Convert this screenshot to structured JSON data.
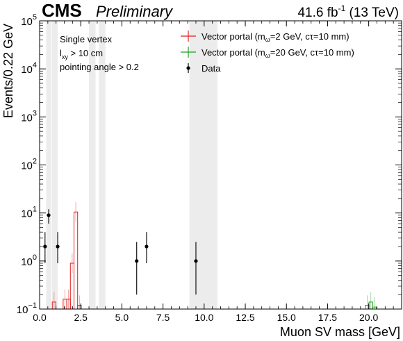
{
  "header": {
    "experiment": "CMS",
    "status": "Preliminary",
    "lumi": "41.6 fb",
    "lumi_exp": "-1",
    "energy": " (13 TeV)"
  },
  "annotations": [
    "Single vertex",
    "l",
    "xy",
    " > 10 cm",
    "pointing angle > 0.2"
  ],
  "legend": [
    {
      "label": "Vector portal (m",
      "sub": "ω",
      "rest": "=2 GeV, cτ=10 mm)",
      "color": "#e41a1c"
    },
    {
      "label": "Vector portal (m",
      "sub": "ω",
      "rest": "=20 GeV, cτ=10 mm)",
      "color": "#1a9e1a"
    },
    {
      "label": "Data",
      "color": "#000000"
    }
  ],
  "chart_data": {
    "type": "scatter",
    "xlabel": "Muon SV mass [GeV]",
    "ylabel": "Events/0.22 GeV",
    "xlim": [
      0,
      22.0
    ],
    "ylim": [
      0.1,
      100000
    ],
    "yscale": "log",
    "xticks": [
      "0.0",
      "2.5",
      "5.0",
      "7.5",
      "10.0",
      "12.5",
      "15.0",
      "17.5",
      "20.0"
    ],
    "xtick_values": [
      0,
      2.5,
      5,
      7.5,
      10,
      12.5,
      15,
      17.5,
      20
    ],
    "yticks": [
      {
        "base": "10",
        "exp": "−1",
        "v": 0.1
      },
      {
        "base": "10",
        "exp": "0",
        "v": 1
      },
      {
        "base": "10",
        "exp": "1",
        "v": 10
      },
      {
        "base": "10",
        "exp": "2",
        "v": 100
      },
      {
        "base": "10",
        "exp": "3",
        "v": 1000
      },
      {
        "base": "10",
        "exp": "4",
        "v": 10000
      },
      {
        "base": "10",
        "exp": "5",
        "v": 100000
      }
    ],
    "masked_regions": [
      [
        0.4,
        0.7
      ],
      [
        0.75,
        1.1
      ],
      [
        3.0,
        3.4
      ],
      [
        3.6,
        4.0
      ],
      [
        9.1,
        10.8
      ]
    ],
    "data": [
      {
        "x": 0.33,
        "y": 2,
        "err": [
          1.1,
          2.0
        ]
      },
      {
        "x": 0.55,
        "y": 9,
        "err": [
          3,
          3
        ]
      },
      {
        "x": 1.1,
        "y": 2,
        "err": [
          1.1,
          2.0
        ]
      },
      {
        "x": 5.9,
        "y": 1,
        "err": [
          0.8,
          1.5
        ]
      },
      {
        "x": 6.5,
        "y": 2,
        "err": [
          1.1,
          2.0
        ]
      },
      {
        "x": 9.5,
        "y": 1,
        "err": [
          0.8,
          1.5
        ]
      }
    ],
    "signal_2gev": {
      "bins": [
        [
          0.77,
          0.99,
          0.14
        ],
        [
          1.43,
          1.65,
          0.16
        ],
        [
          1.65,
          1.87,
          0.16
        ],
        [
          1.87,
          2.09,
          0.9
        ],
        [
          2.09,
          2.31,
          10.5
        ],
        [
          2.31,
          2.53,
          0.12
        ]
      ]
    },
    "signal_20gev": {
      "bins": [
        [
          19.8,
          20.02,
          0.12
        ],
        [
          20.02,
          20.24,
          0.14
        ],
        [
          20.24,
          20.46,
          0.11
        ]
      ]
    }
  }
}
